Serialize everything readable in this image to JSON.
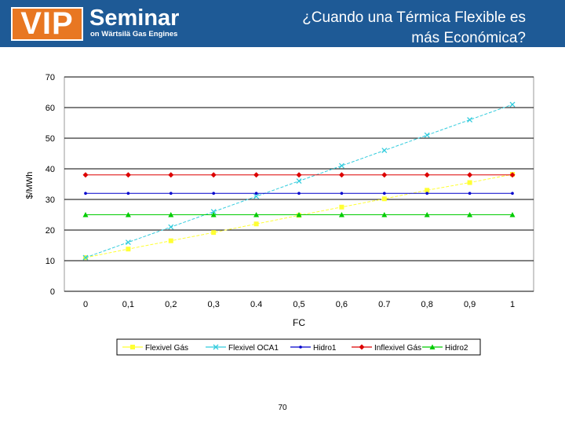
{
  "header": {
    "logo_main": "VIP",
    "logo_title": "Seminar",
    "logo_subtitle": "on Wärtsilä Gas Engines",
    "slide_title_line1": "¿Cuando una Térmica Flexible es",
    "slide_title_line2": "más Económica?",
    "background_color": "#1e5a96",
    "logo_color": "#e87722"
  },
  "footer": {
    "page_number": "70"
  },
  "chart_data": {
    "type": "line",
    "title": "",
    "xlabel": "FC",
    "ylabel": "$/MWh",
    "categories": [
      "0",
      "0,1",
      "0,2",
      "0,3",
      "0.4",
      "0,5",
      "0,6",
      "0.7",
      "0,8",
      "0,9",
      "1"
    ],
    "ylim": [
      0,
      70
    ],
    "yticks": [
      "0",
      "10",
      "20",
      "30",
      "40",
      "50",
      "60",
      "70"
    ],
    "grid": "horizontal",
    "legend_position": "bottom",
    "series": [
      {
        "name": "Flexivel Gás",
        "color": "#ffff33",
        "marker": "square",
        "values": [
          11,
          13.8,
          16.5,
          19.2,
          22,
          24.8,
          27.5,
          30.2,
          33,
          35.5,
          38.2
        ]
      },
      {
        "name": "Flexivel OCA1",
        "color": "#33ccdd",
        "marker": "x",
        "values": [
          11,
          16,
          21,
          26,
          31,
          36,
          41,
          46,
          51,
          56,
          61
        ]
      },
      {
        "name": "Hidro1",
        "color": "#0000cc",
        "marker": "dot",
        "values": [
          32,
          32,
          32,
          32,
          32,
          32,
          32,
          32,
          32,
          32,
          32
        ]
      },
      {
        "name": "Inflexivel Gás",
        "color": "#dd0000",
        "marker": "diamond",
        "values": [
          38,
          38,
          38,
          38,
          38,
          38,
          38,
          38,
          38,
          38,
          38
        ]
      },
      {
        "name": "Hidro2",
        "color": "#00cc00",
        "marker": "triangle",
        "values": [
          25,
          25,
          25,
          25,
          25,
          25,
          25,
          25,
          25,
          25,
          25
        ]
      }
    ]
  }
}
